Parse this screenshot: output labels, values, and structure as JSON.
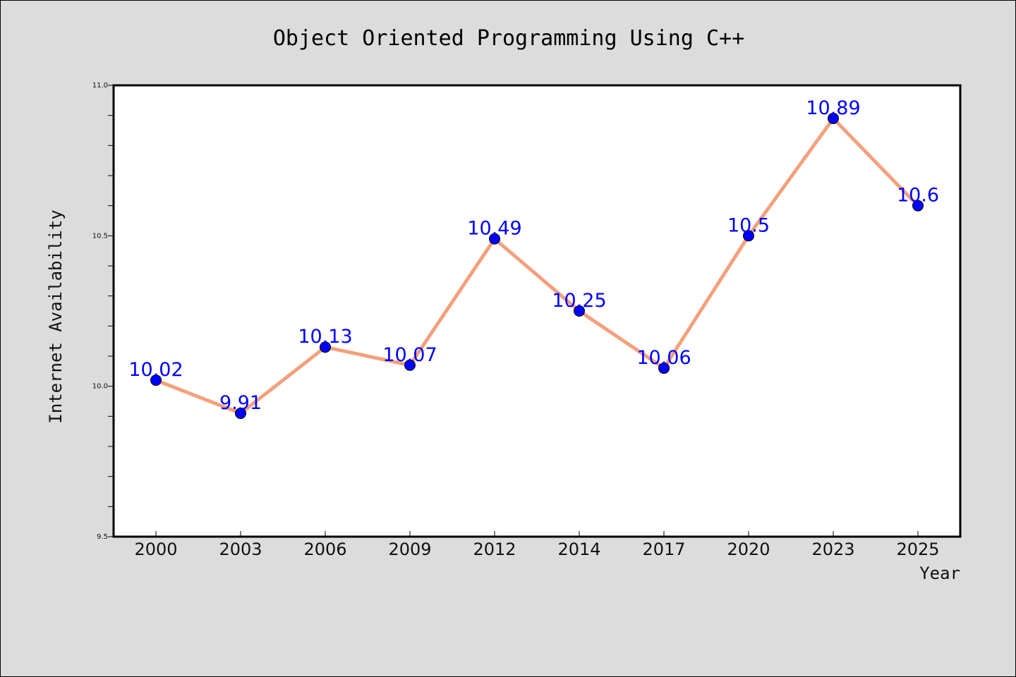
{
  "chart_data": {
    "type": "line",
    "title": "Object Oriented Programming Using C++",
    "xlabel": "Year",
    "ylabel": "Internet Availability",
    "categories": [
      "2000",
      "2003",
      "2006",
      "2009",
      "2012",
      "2014",
      "2017",
      "2020",
      "2023",
      "2025"
    ],
    "series": [
      {
        "values": [
          10.02,
          9.91,
          10.13,
          10.07,
          10.49,
          10.25,
          10.06,
          10.5,
          10.89,
          10.6
        ],
        "labels": [
          "10.02",
          "9.91",
          "10.13",
          "10.07",
          "10.49",
          "10.25",
          "10.06",
          "10.5",
          "10.89",
          "10.6"
        ],
        "line_color": "#f4a07c",
        "marker_color": "#0000ff",
        "label_color": "#0000ff"
      }
    ],
    "ylim": [
      9.5,
      11.0
    ],
    "yticks": [
      "9.5",
      "10.0",
      "10.5",
      "11.0"
    ],
    "ytick_values": [
      9.5,
      10.0,
      10.5,
      11.0
    ],
    "grid": false,
    "legend": "none",
    "colors": {
      "background": "#dcdcdc",
      "plot_background": "#ffffff",
      "axes": "#000000"
    }
  }
}
